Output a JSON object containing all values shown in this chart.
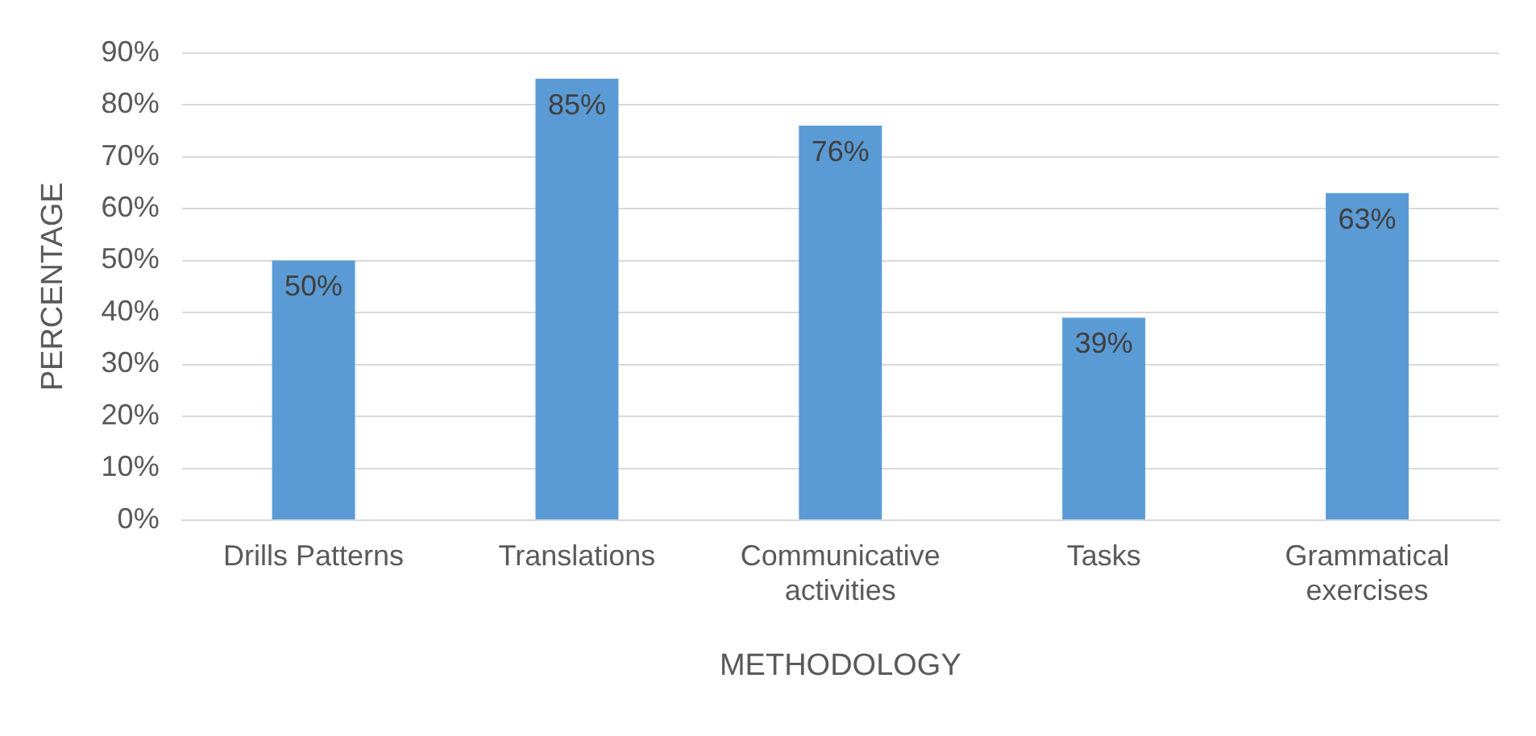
{
  "chart_data": {
    "type": "bar",
    "xlabel": "METHODOLOGY",
    "ylabel": "PERCENTAGE",
    "categories": [
      "Drills Patterns",
      "Translations",
      "Communicative activities",
      "Tasks",
      "Grammatical exercises"
    ],
    "values": [
      50,
      85,
      76,
      39,
      63
    ],
    "color": "#5b9bd5",
    "value_labels": [
      "50%",
      "85%",
      "76%",
      "39%",
      "63%"
    ],
    "ylim": [
      0,
      90
    ],
    "yticks": [
      {
        "value": 0,
        "label": "0%"
      },
      {
        "value": 10,
        "label": "10%"
      },
      {
        "value": 20,
        "label": "20%"
      },
      {
        "value": 30,
        "label": "30%"
      },
      {
        "value": 40,
        "label": "40%"
      },
      {
        "value": 50,
        "label": "50%"
      },
      {
        "value": 60,
        "label": "60%"
      },
      {
        "value": 70,
        "label": "70%"
      },
      {
        "value": 80,
        "label": "80%"
      },
      {
        "value": 90,
        "label": "90%"
      }
    ],
    "grid": "y",
    "legend": false
  }
}
